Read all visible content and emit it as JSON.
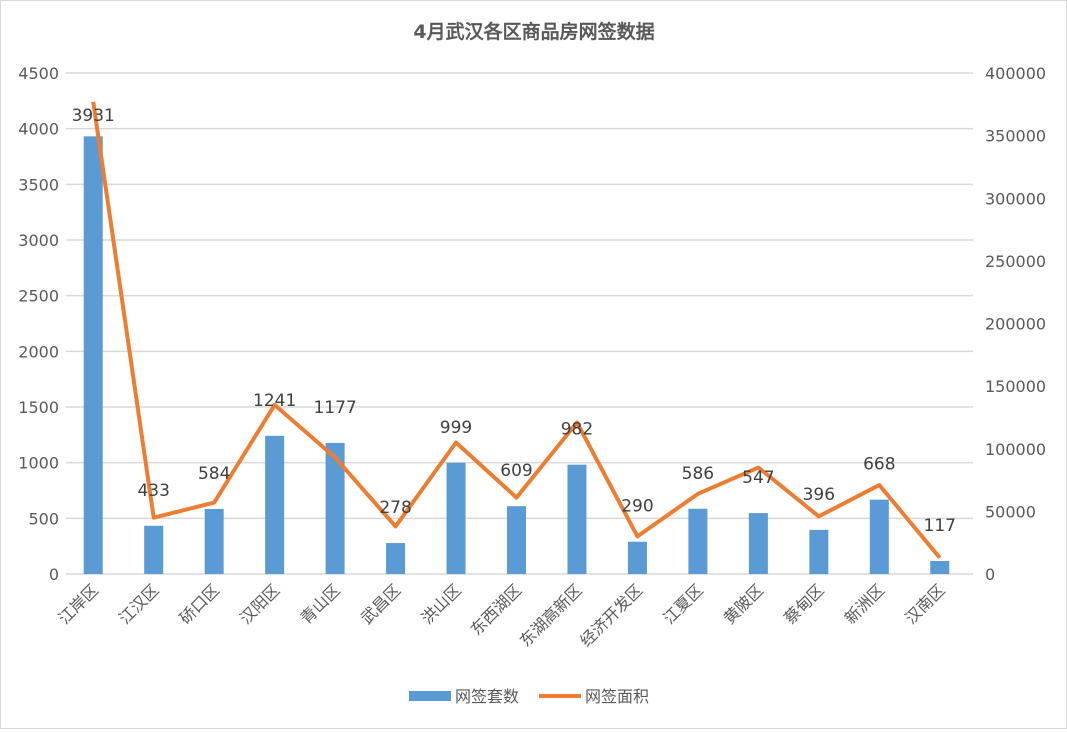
{
  "chart_data": {
    "type": "bar+line",
    "title": "4月武汉各区商品房网签数据",
    "categories": [
      "江岸区",
      "江汉区",
      "硚口区",
      "汉阳区",
      "青山区",
      "武昌区",
      "洪山区",
      "东西湖区",
      "东湖高新区",
      "经济开发区",
      "江夏区",
      "黄陂区",
      "蔡甸区",
      "新洲区",
      "汉南区"
    ],
    "series": [
      {
        "name": "网签套数",
        "type": "bar",
        "axis": "left",
        "color": "#5b9bd5",
        "values": [
          3931,
          433,
          584,
          1241,
          1177,
          278,
          999,
          609,
          982,
          290,
          586,
          547,
          396,
          668,
          117
        ],
        "data_labels": true
      },
      {
        "name": "网签面积",
        "type": "line",
        "axis": "right",
        "color": "#ed7d31",
        "values": [
          377000,
          45000,
          57000,
          135000,
          93000,
          38000,
          105000,
          61000,
          121000,
          30000,
          64000,
          85000,
          46000,
          71000,
          13000
        ]
      }
    ],
    "y_left": {
      "range": [
        0,
        4500
      ],
      "ticks": [
        0,
        500,
        1000,
        1500,
        2000,
        2500,
        3000,
        3500,
        4000,
        4500
      ]
    },
    "y_right": {
      "range": [
        0,
        400000
      ],
      "ticks": [
        0,
        50000,
        100000,
        150000,
        200000,
        250000,
        300000,
        350000,
        400000
      ]
    },
    "grid": true,
    "legend": "bottom"
  }
}
